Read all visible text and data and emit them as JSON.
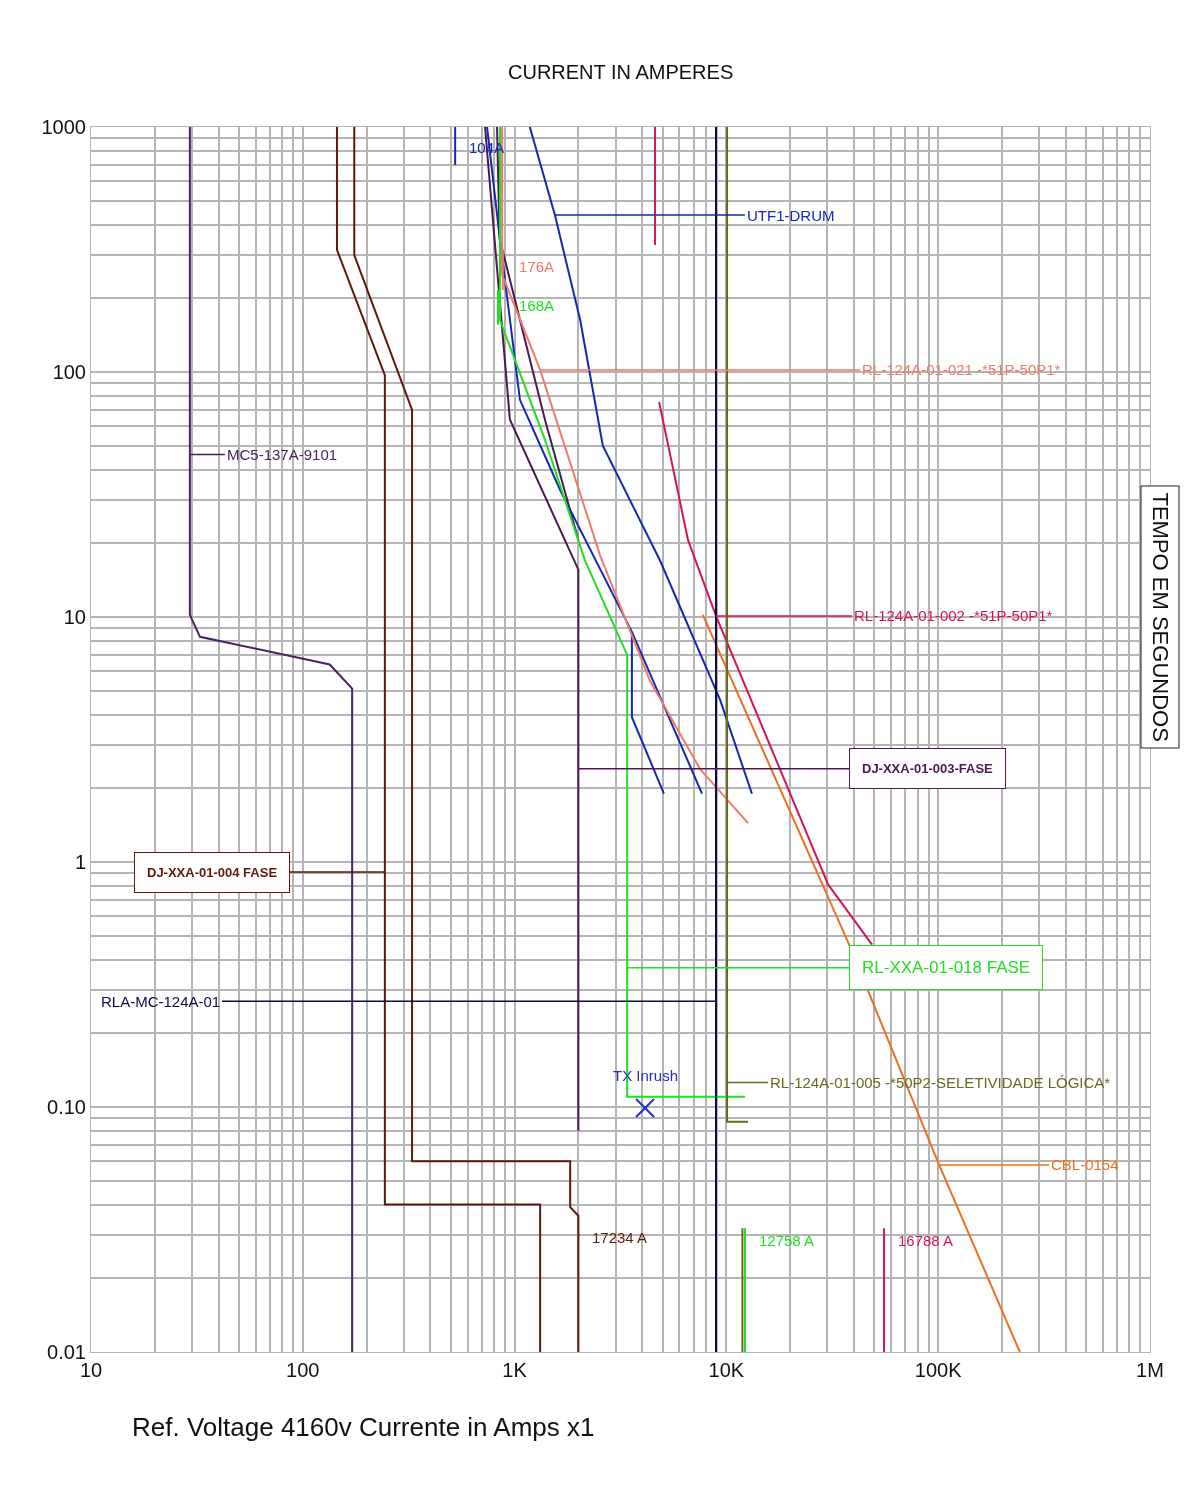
{
  "chart_data": {
    "type": "line",
    "title": "CURRENT IN AMPERES",
    "ylabel": "TEMPO EM SEGUNDOS",
    "xlabel": "Ref. Voltage 4160v Currente in Amps x1",
    "log": "xy",
    "grid": true,
    "marker": "none",
    "xlim": [
      10,
      1000000
    ],
    "ylim": [
      0.01,
      1000
    ],
    "xticks": [
      10,
      100,
      {
        "value": 1000,
        "label": "1K"
      },
      {
        "value": 10000,
        "label": "10K"
      },
      {
        "value": 100000,
        "label": "100K"
      },
      {
        "value": 1000000,
        "label": "1M"
      }
    ],
    "yticks": [
      0.01,
      {
        "value": 0.1,
        "label": "0.10"
      },
      1,
      10,
      100,
      1000
    ],
    "series": [
      {
        "color": "#4b2060",
        "x": [
          29.3,
          29.3,
          29.3,
          32.7,
          134,
          171,
          171
        ],
        "values": [
          1000,
          46,
          10.2,
          8.3,
          6.4,
          5.1,
          0.01
        ]
      },
      {
        "color": "#5c1a0a",
        "x": [
          145,
          145,
          244,
          244,
          244,
          1320,
          1320
        ],
        "values": [
          1000,
          315,
          97,
          0.91,
          0.04,
          0.04,
          0.01
        ]
      },
      {
        "color": "#5c1a0a",
        "x": [
          175,
          175,
          328,
          328,
          1830,
          1830,
          2000,
          2000
        ],
        "values": [
          1000,
          300,
          70,
          0.06,
          0.06,
          0.039,
          0.036,
          0.01
        ]
      },
      {
        "color": "#4a1a50",
        "x": [
          725,
          950,
          2000,
          2000,
          2000
        ],
        "values": [
          1000,
          64,
          15.6,
          2.4,
          0.08
        ]
      },
      {
        "color": "#4a1a50",
        "x": [
          826,
          850,
          1390,
          2000
        ],
        "values": [
          1000,
          350,
          64,
          20.6
        ]
      },
      {
        "color": "#1428b4",
        "x": [
          1180,
          1550,
          2040,
          2610,
          4860,
          9330,
          13200
        ],
        "values": [
          1000,
          437,
          163,
          50,
          17,
          4.6,
          1.9
        ]
      },
      {
        "color": "#1428b4",
        "x": [
          741,
          853,
          1060,
          1640,
          3580,
          7670
        ],
        "values": [
          1000,
          346,
          77,
          33,
          8.7,
          1.9
        ]
      },
      {
        "color": "#1428b4",
        "x": [
          3580,
          3580,
          5070
        ],
        "values": [
          8.7,
          3.9,
          1.9
        ]
      },
      {
        "color": "#1428b4",
        "x": [
          524,
          524
        ],
        "values": [
          1000,
          700
        ]
      },
      {
        "color": "#22dd22",
        "x": [
          853,
          853,
          1390,
          2150,
          3400,
          3400,
          3400,
          12240
        ],
        "values": [
          1000,
          163,
          53,
          17,
          7.0,
          0.37,
          0.11,
          0.11
        ]
      },
      {
        "color": "#22dd22",
        "x": [
          835,
          835
        ],
        "values": [
          216,
          156
        ]
      },
      {
        "color": "#22dd22",
        "x": [
          12240,
          12240
        ],
        "values": [
          0.032,
          0.01
        ]
      },
      {
        "color": "#f07a6a",
        "x": [
          873,
          873,
          1320,
          2530,
          4350,
          7500,
          12650
        ],
        "values": [
          1000,
          250,
          102,
          17.9,
          5.5,
          2.4,
          1.44
        ]
      },
      {
        "color": "#f07a6a",
        "x": [
          880,
          880
        ],
        "values": [
          315,
          216
        ]
      },
      {
        "color": "#d4145a",
        "x": [
          4810,
          6590,
          8930,
          30200,
          48700
        ],
        "values": [
          75.5,
          20.6,
          10.1,
          0.81,
          0.46
        ]
      },
      {
        "color": "#d4145a",
        "x": [
          4600,
          4600
        ],
        "values": [
          1000,
          330
        ]
      },
      {
        "color": "#d4145a",
        "x": [
          55500,
          55500
        ],
        "values": [
          0.032,
          0.01
        ]
      },
      {
        "color": "#ec7020",
        "x": [
          7740,
          38400,
          101000,
          243000
        ],
        "values": [
          10.2,
          0.45,
          0.058,
          0.01
        ]
      },
      {
        "color": "#0c0c4c",
        "x": [
          8930,
          8930,
          8930
        ],
        "values": [
          1000,
          0.27,
          0.01
        ]
      },
      {
        "color": "#6b6820",
        "x": [
          10070,
          10070,
          10070,
          12650
        ],
        "values": [
          1000,
          0.126,
          0.087,
          0.087
        ]
      },
      {
        "color": "#6b6820",
        "x": [
          11900,
          11900
        ],
        "values": [
          0.032,
          0.01
        ]
      },
      {
        "type": "scatter",
        "marker": "cross",
        "color": "#2030c0",
        "x": [
          4130
        ],
        "values": [
          0.099
        ]
      }
    ],
    "annotations": [
      {
        "text": "MC5-137A-9101",
        "x": 29.3,
        "y": 46
      },
      {
        "text": "DJ-XXA-01-004 FASE",
        "x": 244,
        "y": 0.91
      },
      {
        "text": "17234 A",
        "x": 2000,
        "y": 0.036
      },
      {
        "text": "DJ-XXA-01-003-FASE",
        "x": 2000,
        "y": 2.4
      },
      {
        "text": "UTF1-DRUM",
        "x": 1550,
        "y": 437
      },
      {
        "text": "104A",
        "x": 524,
        "y": 1000
      },
      {
        "text": "RL-XXA-01-018 FASE",
        "x": 3400,
        "y": 0.37
      },
      {
        "text": "168A",
        "x": 835,
        "y": 216
      },
      {
        "text": "12758 A",
        "x": 12240,
        "y": 0.032
      },
      {
        "text": "RL-124A-01-021 -*51P-50P1*",
        "x": 1320,
        "y": 102
      },
      {
        "text": "176A",
        "x": 880,
        "y": 315
      },
      {
        "text": "RL-124A-01-002 -*51P-50P1*",
        "x": 8930,
        "y": 10.1
      },
      {
        "text": "16788 A",
        "x": 55500,
        "y": 0.032
      },
      {
        "text": "CBL-0154",
        "x": 101000,
        "y": 0.058
      },
      {
        "text": "RLA-MC-124A-01",
        "x": 8930,
        "y": 0.27
      },
      {
        "text": "RL-124A-01-005 -*50P2-SELETIVIDADE LÓGICA*",
        "x": 10070,
        "y": 0.126
      },
      {
        "text": "TX Inrush",
        "x": 4130,
        "y": 0.099
      }
    ]
  }
}
